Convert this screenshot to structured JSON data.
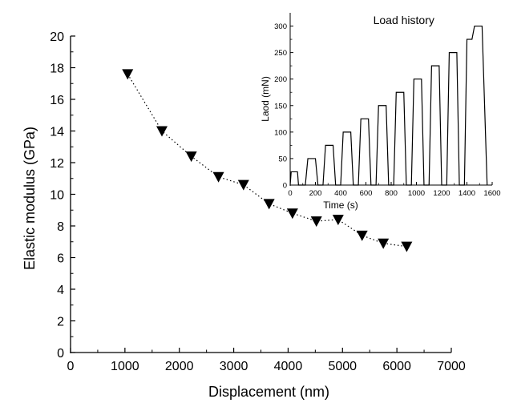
{
  "chart_data": [
    {
      "type": "scatter",
      "title": "",
      "xlabel": "Displacement (nm)",
      "ylabel": "Elastic modulus (GPa)",
      "xlim": [
        0,
        7000
      ],
      "ylim": [
        0,
        20
      ],
      "xticks": [
        0,
        1000,
        2000,
        3000,
        4000,
        5000,
        6000,
        7000
      ],
      "yticks": [
        0,
        2,
        4,
        6,
        8,
        10,
        12,
        14,
        16,
        18,
        20
      ],
      "marker": "down-triangle",
      "line_style": "dotted",
      "grid": false,
      "series": [
        {
          "x": [
            1050,
            1680,
            2220,
            2720,
            3180,
            3650,
            4080,
            4520,
            4920,
            5360,
            5750,
            6180
          ],
          "y": [
            17.6,
            14.0,
            12.4,
            11.1,
            10.6,
            9.4,
            8.8,
            8.3,
            8.4,
            7.4,
            6.9,
            6.7
          ]
        }
      ]
    },
    {
      "type": "line",
      "title": "Load history",
      "xlabel": "Time (s)",
      "ylabel": "Laod (mN)",
      "xlim": [
        0,
        1600
      ],
      "ylim": [
        0,
        325
      ],
      "xticks": [
        0,
        200,
        400,
        600,
        800,
        1000,
        1200,
        1400,
        1600
      ],
      "yticks": [
        0,
        50,
        100,
        150,
        200,
        250,
        300
      ],
      "grid": false,
      "series": [
        {
          "x": [
            0,
            8,
            58,
            66,
            120,
            140,
            200,
            220,
            260,
            280,
            340,
            360,
            400,
            420,
            480,
            500,
            540,
            560,
            620,
            640,
            680,
            700,
            760,
            780,
            820,
            840,
            900,
            920,
            960,
            980,
            1040,
            1060,
            1100,
            1120,
            1180,
            1200,
            1240,
            1260,
            1320,
            1340,
            1380,
            1400,
            1440
          ],
          "y": [
            0,
            25,
            25,
            0,
            0,
            50,
            50,
            0,
            0,
            75,
            75,
            0,
            0,
            100,
            100,
            0,
            0,
            125,
            125,
            0,
            0,
            150,
            150,
            0,
            0,
            175,
            175,
            0,
            0,
            200,
            200,
            0,
            0,
            225,
            225,
            0,
            0,
            250,
            250,
            0,
            0,
            275,
            275
          ],
          "x_tail": [
            1440,
            1460,
            1520
          ],
          "y_tail": [
            0,
            300,
            300
          ]
        }
      ]
    }
  ]
}
